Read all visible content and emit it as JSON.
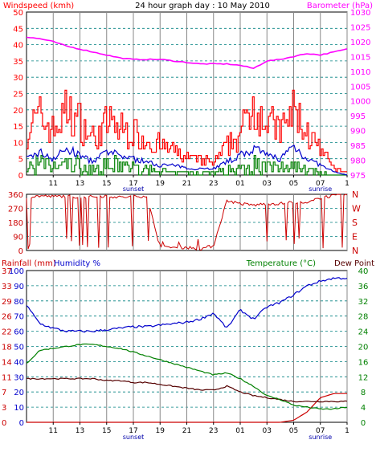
{
  "header": {
    "title": "24 hour graph day : 10 May 2010",
    "wind_label": "Windspeed (kmh)",
    "baro_label": "Barometer (hPa)"
  },
  "direction": {
    "compass": [
      "N",
      "W",
      "S",
      "E",
      "N"
    ]
  },
  "bottom": {
    "rain_label": "Rainfall (mm)",
    "hum_label": "Humidity %",
    "temp_label": "Temperature (°C)",
    "dew_label": "Dew Point"
  },
  "x_axis": {
    "hours": [
      "11",
      "13",
      "15",
      "17",
      "19",
      "21",
      "23",
      "01",
      "03",
      "05",
      "07",
      "1"
    ],
    "sunset": "sunset",
    "sunrise": "sunrise"
  },
  "colors": {
    "wind_gust": "#ff0000",
    "wind_avg": "#0000cc",
    "wind_min": "#008000",
    "barometer": "#ff00ff",
    "direction": "#cc0000",
    "humidity": "#0000cc",
    "temperature": "#008000",
    "dewpoint": "#550000",
    "rainfall": "#cc0000",
    "grid": "#008080"
  },
  "chart_data": [
    {
      "type": "line",
      "ylim_left": [
        0,
        50
      ],
      "ylim_right": [
        975,
        1030
      ],
      "yticks_left": [
        "0",
        "5",
        "10",
        "15",
        "20",
        "25",
        "30",
        "35",
        "40",
        "45",
        "50"
      ],
      "yticks_right": [
        "975",
        "980",
        "985",
        "990",
        "995",
        "1000",
        "1005",
        "1010",
        "1015",
        "1020",
        "1025",
        "1030"
      ],
      "x_hours": [
        9,
        10,
        11,
        12,
        13,
        14,
        15,
        16,
        17,
        18,
        19,
        20,
        21,
        22,
        23,
        24,
        25,
        26,
        27,
        28,
        29,
        30,
        31,
        32,
        33
      ],
      "barometer": [
        1021.5,
        1021.0,
        1020.0,
        1018.5,
        1017.5,
        1016.5,
        1015.5,
        1014.5,
        1014.0,
        1014.0,
        1014.0,
        1013.5,
        1013.0,
        1012.5,
        1012.5,
        1012.5,
        1012.0,
        1011.0,
        1013.5,
        1014.0,
        1015.0,
        1016.0,
        1015.5,
        1016.5,
        1017.5
      ],
      "wind_gust": [
        15,
        20,
        15,
        22,
        18,
        12,
        18,
        16,
        14,
        12,
        10,
        8,
        6,
        5,
        4,
        10,
        14,
        25,
        18,
        15,
        22,
        14,
        8,
        2,
        1
      ],
      "wind_avg": [
        5,
        7,
        5,
        8,
        6,
        4,
        7,
        6,
        5,
        4,
        3,
        3,
        2,
        2,
        2,
        4,
        6,
        8,
        6,
        5,
        9,
        5,
        3,
        1,
        0
      ],
      "wind_min": [
        3,
        5,
        3,
        5,
        4,
        2,
        4,
        4,
        3,
        2,
        2,
        1,
        1,
        1,
        1,
        2,
        3,
        5,
        3,
        3,
        5,
        3,
        1,
        0,
        0
      ]
    },
    {
      "type": "line",
      "ylim": [
        0,
        360
      ],
      "yticks": [
        "0",
        "90",
        "180",
        "270",
        "360"
      ],
      "x_hours": [
        9,
        10,
        11,
        12,
        13,
        14,
        15,
        16,
        17,
        18,
        19,
        20,
        21,
        22,
        23,
        24,
        25,
        26,
        27,
        28,
        29,
        30,
        31,
        32,
        33
      ],
      "direction": [
        340,
        350,
        345,
        350,
        340,
        345,
        350,
        340,
        345,
        350,
        20,
        20,
        20,
        10,
        30,
        320,
        300,
        290,
        300,
        300,
        310,
        300,
        340,
        350,
        355
      ]
    },
    {
      "type": "line",
      "ylim_left_humidity": [
        0,
        100
      ],
      "ylim_left_rain": [
        0,
        37
      ],
      "ylim_right_temp": [
        0,
        40
      ],
      "yticks_humidity": [
        "0",
        "10",
        "20",
        "30",
        "40",
        "50",
        "60",
        "70",
        "80",
        "90",
        "100"
      ],
      "yticks_rain": [
        "0",
        "3",
        "7",
        "11",
        "14",
        "18",
        "22",
        "26",
        "29",
        "33",
        "37"
      ],
      "yticks_temp": [
        "0",
        "4",
        "8",
        "12",
        "16",
        "20",
        "24",
        "28",
        "32",
        "36",
        "40"
      ],
      "x_hours": [
        9,
        10,
        11,
        12,
        13,
        14,
        15,
        16,
        17,
        18,
        19,
        20,
        21,
        22,
        23,
        24,
        25,
        26,
        27,
        28,
        29,
        30,
        31,
        32,
        33
      ],
      "humidity": [
        77,
        65,
        62,
        60,
        60,
        60,
        61,
        62,
        63,
        63,
        64,
        65,
        66,
        68,
        72,
        62,
        74,
        68,
        76,
        79,
        84,
        90,
        93,
        95,
        95
      ],
      "temperature": [
        15.5,
        19,
        19.5,
        20,
        20.5,
        20.5,
        20,
        19.5,
        18.5,
        17.5,
        16.5,
        15.5,
        14.5,
        13.5,
        12.5,
        13,
        11.5,
        9.5,
        7,
        6,
        4.5,
        4,
        3.5,
        3.5,
        4
      ],
      "dewpoint": [
        11.5,
        11.5,
        11.5,
        11.5,
        11.5,
        11.5,
        11,
        11,
        10.5,
        10.5,
        10,
        9.5,
        9,
        8.5,
        8.5,
        9.5,
        8,
        7,
        6.5,
        6,
        5.5,
        5.5,
        5.5,
        5.5,
        5.5
      ],
      "rainfall": [
        0,
        0,
        0,
        0,
        0,
        0,
        0,
        0,
        0,
        0,
        0,
        0,
        0,
        0,
        0,
        0,
        0,
        0,
        0,
        0,
        0.5,
        2.5,
        6,
        7,
        7
      ]
    }
  ]
}
